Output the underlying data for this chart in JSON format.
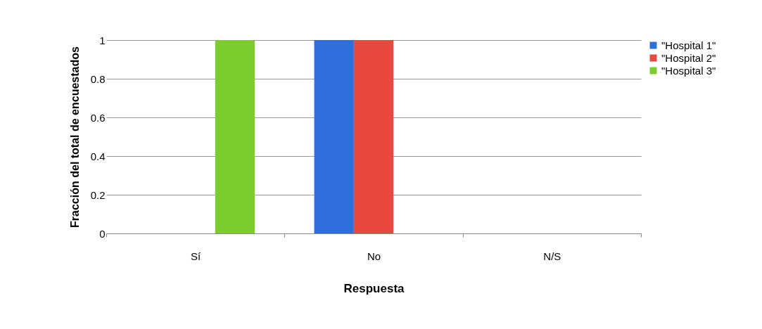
{
  "chart_data": {
    "type": "bar",
    "xlabel": "Respuesta",
    "ylabel": "Fracción del total de encuestados",
    "categories": [
      "Sí",
      "No",
      "N/S"
    ],
    "series": [
      {
        "name": "\"Hospital 1\"",
        "color": "#2f6fdc",
        "values": [
          0,
          1,
          0
        ]
      },
      {
        "name": "\"Hospital 2\"",
        "color": "#e8493e",
        "values": [
          0,
          1,
          0
        ]
      },
      {
        "name": "\"Hospital 3\"",
        "color": "#7dcc2f",
        "values": [
          1,
          0,
          0
        ]
      }
    ],
    "ylim": [
      0,
      1
    ],
    "yticks": [
      0,
      0.2,
      0.4,
      0.6,
      0.8,
      1
    ],
    "grid": "y",
    "legend": "right"
  }
}
